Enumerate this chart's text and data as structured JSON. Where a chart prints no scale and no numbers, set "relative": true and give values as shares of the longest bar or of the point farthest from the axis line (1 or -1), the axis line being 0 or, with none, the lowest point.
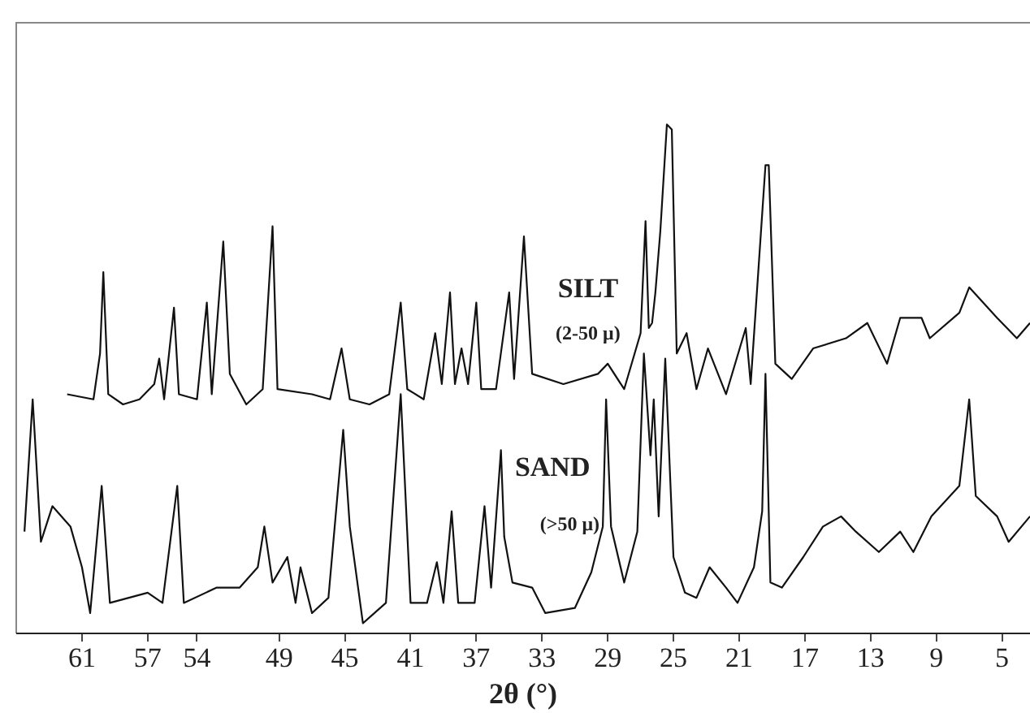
{
  "chart_data": {
    "type": "line",
    "relative": true,
    "xlabel": "2θ (°)",
    "xlim": [
      65,
      3.3
    ],
    "xticks": [
      61,
      57,
      54,
      49,
      45,
      41,
      37,
      33,
      29,
      25,
      21,
      17,
      13,
      9,
      5
    ],
    "marker": "none",
    "series": [
      {
        "color": "#111111",
        "x": [
          61.9,
          60.3,
          59.9,
          59.7,
          59.4,
          58.5,
          57.5,
          56.6,
          56.3,
          56.0,
          55.4,
          55.1,
          54.0,
          53.4,
          53.1,
          52.4,
          52.0,
          51.0,
          50.0,
          49.4,
          49.1,
          47.0,
          45.9,
          45.2,
          44.7,
          43.5,
          42.3,
          41.6,
          41.2,
          40.2,
          39.5,
          39.1,
          38.6,
          38.3,
          37.9,
          37.5,
          37.0,
          36.7,
          35.8,
          35.0,
          34.7,
          34.1,
          33.6,
          31.7,
          29.6,
          29.0,
          28.0,
          27.0,
          26.7,
          26.5,
          26.3,
          26.1,
          25.8,
          25.4,
          25.1,
          24.8,
          24.2,
          23.6,
          22.9,
          21.8,
          20.6,
          20.3,
          19.4,
          19.2,
          18.8,
          17.8,
          16.5,
          14.5,
          13.2,
          12.0,
          11.2,
          9.9,
          9.4,
          7.6,
          7.0,
          5.3,
          4.1,
          3.3
        ],
        "values": [
          0.47,
          0.46,
          0.55,
          0.71,
          0.47,
          0.45,
          0.46,
          0.49,
          0.54,
          0.46,
          0.64,
          0.47,
          0.46,
          0.65,
          0.47,
          0.77,
          0.51,
          0.45,
          0.48,
          0.8,
          0.48,
          0.47,
          0.46,
          0.56,
          0.46,
          0.45,
          0.47,
          0.65,
          0.48,
          0.46,
          0.59,
          0.49,
          0.67,
          0.49,
          0.56,
          0.49,
          0.65,
          0.48,
          0.48,
          0.67,
          0.5,
          0.78,
          0.51,
          0.49,
          0.51,
          0.53,
          0.48,
          0.59,
          0.81,
          0.6,
          0.61,
          0.67,
          0.79,
          1.0,
          0.99,
          0.55,
          0.59,
          0.48,
          0.56,
          0.47,
          0.6,
          0.49,
          0.92,
          0.92,
          0.53,
          0.5,
          0.56,
          0.58,
          0.61,
          0.53,
          0.62,
          0.62,
          0.58,
          0.63,
          0.68,
          0.62,
          0.58,
          0.61
        ]
      },
      {
        "color": "#111111",
        "x": [
          64.5,
          64.0,
          63.5,
          62.8,
          61.7,
          61.0,
          60.5,
          59.8,
          59.3,
          57.0,
          56.1,
          55.2,
          54.8,
          52.8,
          51.4,
          50.3,
          49.9,
          49.4,
          48.5,
          48.0,
          47.7,
          47.0,
          46.0,
          45.1,
          44.7,
          43.9,
          42.5,
          41.6,
          41.0,
          40.0,
          39.4,
          39.0,
          38.5,
          38.1,
          37.1,
          36.5,
          36.1,
          35.5,
          35.3,
          34.8,
          33.6,
          32.8,
          31.0,
          30.0,
          29.3,
          29.1,
          28.8,
          28.0,
          27.2,
          26.8,
          26.4,
          26.2,
          25.9,
          25.5,
          25.0,
          24.3,
          23.6,
          22.8,
          21.8,
          21.1,
          20.1,
          19.6,
          19.4,
          19.1,
          18.4,
          17.1,
          15.9,
          14.8,
          13.9,
          12.5,
          11.2,
          10.4,
          9.3,
          7.6,
          7.0,
          6.6,
          5.3,
          4.6,
          3.3
        ],
        "values": [
          0.2,
          0.46,
          0.18,
          0.25,
          0.21,
          0.13,
          0.04,
          0.29,
          0.06,
          0.08,
          0.06,
          0.29,
          0.06,
          0.09,
          0.09,
          0.13,
          0.21,
          0.1,
          0.15,
          0.06,
          0.13,
          0.04,
          0.07,
          0.4,
          0.21,
          0.02,
          0.06,
          0.47,
          0.06,
          0.06,
          0.14,
          0.06,
          0.24,
          0.06,
          0.06,
          0.25,
          0.09,
          0.36,
          0.19,
          0.1,
          0.09,
          0.04,
          0.05,
          0.12,
          0.21,
          0.46,
          0.21,
          0.1,
          0.2,
          0.55,
          0.35,
          0.46,
          0.23,
          0.54,
          0.15,
          0.08,
          0.07,
          0.13,
          0.09,
          0.06,
          0.13,
          0.24,
          0.51,
          0.1,
          0.09,
          0.15,
          0.21,
          0.23,
          0.2,
          0.16,
          0.2,
          0.16,
          0.23,
          0.29,
          0.46,
          0.27,
          0.23,
          0.18,
          0.23
        ]
      }
    ],
    "annotations": [
      "SILT",
      "(2-50 μ)",
      "SAND",
      "(>50 μ)"
    ]
  }
}
